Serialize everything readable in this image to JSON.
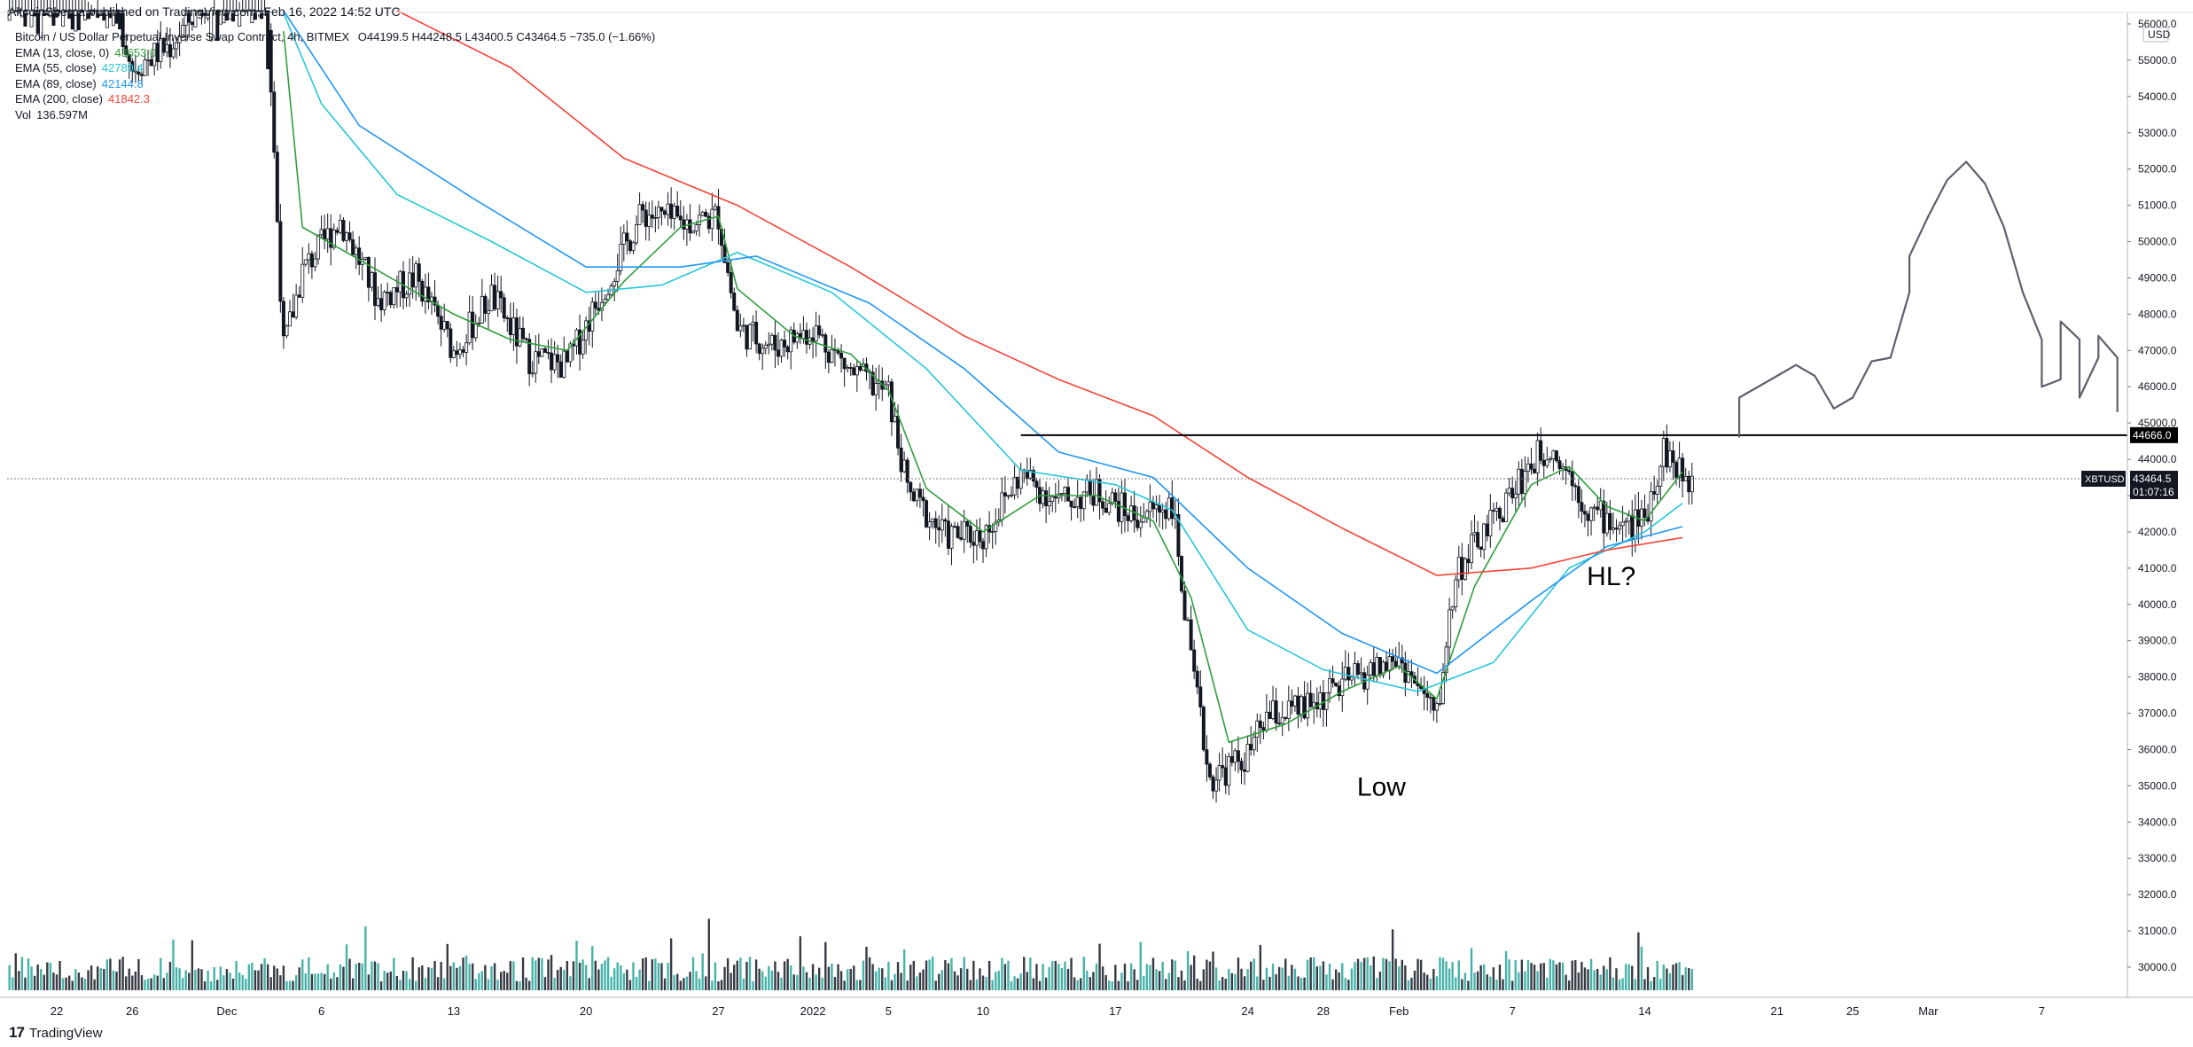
{
  "header": {
    "published_by": "AltcoinSherpa published on TradingView.com, Feb 16, 2022 14:52 UTC",
    "symbol_line": "Bitcoin / US Dollar Perpetual Inverse Swap Contract, 4h, BITMEX",
    "ohlc": "O44199.5  H44248.5  L43400.5  C43464.5  −735.0 (−1.66%)"
  },
  "indicators": [
    {
      "label": "EMA (13, close, 0)",
      "value": "43653.0",
      "color": "#2e9e3a"
    },
    {
      "label": "EMA (55, close)",
      "value": "42789.4",
      "color": "#26c6da"
    },
    {
      "label": "EMA (89, close)",
      "value": "42144.8",
      "color": "#2196f3"
    },
    {
      "label": "EMA (200, close)",
      "value": "41842.3",
      "color": "#f44336"
    },
    {
      "label": "Vol",
      "value": "136.597M",
      "color": "#131722"
    }
  ],
  "branding": {
    "logo_text": "TradingView"
  },
  "price_axis": {
    "currency": "USD"
  },
  "labels": {
    "resistance_price": "44666.0",
    "current_symbol": "XBTUSD",
    "current_price": "43464.5",
    "countdown": "01:07:16",
    "annotation_low": "Low",
    "annotation_hl": "HL?"
  },
  "colors": {
    "ema13": "#2e9e3a",
    "ema55": "#26c6da",
    "ema89": "#2196f3",
    "ema200": "#f44336",
    "candles": "#131722",
    "volume": "#26a69a"
  },
  "chart_data": {
    "type": "candlestick",
    "timeframe": "4h",
    "ylim": [
      29500,
      56200
    ],
    "y_ticks": [
      "30000.0",
      "31000.0",
      "32000.0",
      "33000.0",
      "34000.0",
      "35000.0",
      "36000.0",
      "37000.0",
      "38000.0",
      "39000.0",
      "40000.0",
      "41000.0",
      "42000.0",
      "43000.0",
      "44000.0",
      "45000.0",
      "46000.0",
      "47000.0",
      "48000.0",
      "49000.0",
      "50000.0",
      "51000.0",
      "52000.0",
      "53000.0",
      "54000.0",
      "55000.0",
      "56000.0"
    ],
    "x_ticks": [
      {
        "label": "22",
        "date": "2021-11-22"
      },
      {
        "label": "26",
        "date": "2021-11-26"
      },
      {
        "label": "Dec",
        "date": "2021-12-01"
      },
      {
        "label": "6",
        "date": "2021-12-06"
      },
      {
        "label": "13",
        "date": "2021-12-13"
      },
      {
        "label": "20",
        "date": "2021-12-20"
      },
      {
        "label": "27",
        "date": "2021-12-27"
      },
      {
        "label": "2022",
        "date": "2022-01-01"
      },
      {
        "label": "5",
        "date": "2022-01-05"
      },
      {
        "label": "10",
        "date": "2022-01-10"
      },
      {
        "label": "17",
        "date": "2022-01-17"
      },
      {
        "label": "24",
        "date": "2022-01-24"
      },
      {
        "label": "28",
        "date": "2022-01-28"
      },
      {
        "label": "Feb",
        "date": "2022-02-01"
      },
      {
        "label": "7",
        "date": "2022-02-07"
      },
      {
        "label": "14",
        "date": "2022-02-14"
      },
      {
        "label": "21",
        "date": "2022-02-21"
      },
      {
        "label": "25",
        "date": "2022-02-25"
      },
      {
        "label": "Mar",
        "date": "2022-03-01"
      },
      {
        "label": "7",
        "date": "2022-03-07"
      }
    ],
    "close_path": [
      {
        "date": "2021-11-19",
        "close": 58000
      },
      {
        "date": "2021-11-22",
        "close": 57400
      },
      {
        "date": "2021-11-25",
        "close": 56800
      },
      {
        "date": "2021-11-26",
        "close": 54800
      },
      {
        "date": "2021-11-28",
        "close": 55400
      },
      {
        "date": "2021-11-30",
        "close": 56800
      },
      {
        "date": "2021-12-03",
        "close": 57800
      },
      {
        "date": "2021-12-04",
        "close": 47000
      },
      {
        "date": "2021-12-05",
        "close": 49200
      },
      {
        "date": "2021-12-07",
        "close": 50600
      },
      {
        "date": "2021-12-09",
        "close": 48400
      },
      {
        "date": "2021-12-11",
        "close": 49000
      },
      {
        "date": "2021-12-13",
        "close": 47000
      },
      {
        "date": "2021-12-15",
        "close": 48500
      },
      {
        "date": "2021-12-17",
        "close": 46800
      },
      {
        "date": "2021-12-19",
        "close": 46600
      },
      {
        "date": "2021-12-21",
        "close": 48800
      },
      {
        "date": "2021-12-23",
        "close": 50800
      },
      {
        "date": "2021-12-25",
        "close": 50500
      },
      {
        "date": "2021-12-27",
        "close": 50700
      },
      {
        "date": "2021-12-28",
        "close": 47600
      },
      {
        "date": "2021-12-30",
        "close": 47100
      },
      {
        "date": "2022-01-01",
        "close": 47600
      },
      {
        "date": "2022-01-03",
        "close": 46400
      },
      {
        "date": "2022-01-05",
        "close": 45800
      },
      {
        "date": "2022-01-06",
        "close": 43100
      },
      {
        "date": "2022-01-08",
        "close": 41900
      },
      {
        "date": "2022-01-10",
        "close": 41900
      },
      {
        "date": "2022-01-12",
        "close": 43600
      },
      {
        "date": "2022-01-14",
        "close": 42800
      },
      {
        "date": "2022-01-16",
        "close": 43100
      },
      {
        "date": "2022-01-18",
        "close": 42400
      },
      {
        "date": "2022-01-20",
        "close": 42800
      },
      {
        "date": "2022-01-21",
        "close": 38400
      },
      {
        "date": "2022-01-22",
        "close": 35200
      },
      {
        "date": "2022-01-24",
        "close": 35800
      },
      {
        "date": "2022-01-25",
        "close": 36900
      },
      {
        "date": "2022-01-27",
        "close": 37100
      },
      {
        "date": "2022-01-29",
        "close": 37800
      },
      {
        "date": "2022-02-01",
        "close": 38500
      },
      {
        "date": "2022-02-03",
        "close": 36900
      },
      {
        "date": "2022-02-04",
        "close": 40900
      },
      {
        "date": "2022-02-06",
        "close": 42300
      },
      {
        "date": "2022-02-08",
        "close": 43900
      },
      {
        "date": "2022-02-09",
        "close": 44400
      },
      {
        "date": "2022-02-10",
        "close": 43600
      },
      {
        "date": "2022-02-11",
        "close": 42600
      },
      {
        "date": "2022-02-13",
        "close": 42100
      },
      {
        "date": "2022-02-14",
        "close": 42400
      },
      {
        "date": "2022-02-15",
        "close": 44300
      },
      {
        "date": "2022-02-16",
        "close": 43464.5
      }
    ],
    "series": [
      {
        "name": "EMA (13, close, 0)",
        "points": [
          {
            "date": "2021-12-04",
            "value": 55800
          },
          {
            "date": "2021-12-05",
            "value": 50400
          },
          {
            "date": "2021-12-07",
            "value": 49800
          },
          {
            "date": "2021-12-10",
            "value": 48900
          },
          {
            "date": "2021-12-13",
            "value": 48000
          },
          {
            "date": "2021-12-16",
            "value": 47300
          },
          {
            "date": "2021-12-19",
            "value": 47000
          },
          {
            "date": "2021-12-22",
            "value": 48900
          },
          {
            "date": "2021-12-25",
            "value": 50400
          },
          {
            "date": "2021-12-27",
            "value": 50700
          },
          {
            "date": "2021-12-28",
            "value": 48700
          },
          {
            "date": "2021-12-31",
            "value": 47400
          },
          {
            "date": "2022-01-03",
            "value": 46900
          },
          {
            "date": "2022-01-05",
            "value": 45900
          },
          {
            "date": "2022-01-07",
            "value": 43200
          },
          {
            "date": "2022-01-10",
            "value": 42000
          },
          {
            "date": "2022-01-13",
            "value": 43000
          },
          {
            "date": "2022-01-16",
            "value": 43000
          },
          {
            "date": "2022-01-19",
            "value": 42300
          },
          {
            "date": "2022-01-21",
            "value": 40200
          },
          {
            "date": "2022-01-23",
            "value": 36200
          },
          {
            "date": "2022-01-26",
            "value": 36700
          },
          {
            "date": "2022-01-29",
            "value": 37600
          },
          {
            "date": "2022-02-01",
            "value": 38300
          },
          {
            "date": "2022-02-03",
            "value": 37400
          },
          {
            "date": "2022-02-05",
            "value": 40500
          },
          {
            "date": "2022-02-08",
            "value": 43300
          },
          {
            "date": "2022-02-10",
            "value": 43800
          },
          {
            "date": "2022-02-12",
            "value": 42700
          },
          {
            "date": "2022-02-14",
            "value": 42300
          },
          {
            "date": "2022-02-16",
            "value": 43653
          }
        ]
      },
      {
        "name": "EMA (55, close)",
        "points": [
          {
            "date": "2021-12-04",
            "value": 56300
          },
          {
            "date": "2021-12-06",
            "value": 53800
          },
          {
            "date": "2021-12-10",
            "value": 51300
          },
          {
            "date": "2021-12-15",
            "value": 50000
          },
          {
            "date": "2021-12-20",
            "value": 48600
          },
          {
            "date": "2021-12-24",
            "value": 48800
          },
          {
            "date": "2021-12-28",
            "value": 49700
          },
          {
            "date": "2022-01-02",
            "value": 48600
          },
          {
            "date": "2022-01-07",
            "value": 46500
          },
          {
            "date": "2022-01-12",
            "value": 43700
          },
          {
            "date": "2022-01-17",
            "value": 43300
          },
          {
            "date": "2022-01-20",
            "value": 42600
          },
          {
            "date": "2022-01-24",
            "value": 39300
          },
          {
            "date": "2022-01-28",
            "value": 38200
          },
          {
            "date": "2022-02-02",
            "value": 37600
          },
          {
            "date": "2022-02-06",
            "value": 38400
          },
          {
            "date": "2022-02-10",
            "value": 41000
          },
          {
            "date": "2022-02-14",
            "value": 42000
          },
          {
            "date": "2022-02-16",
            "value": 42789.4
          }
        ]
      },
      {
        "name": "EMA (89, close)",
        "points": [
          {
            "date": "2021-12-04",
            "value": 57200
          },
          {
            "date": "2021-12-08",
            "value": 53200
          },
          {
            "date": "2021-12-14",
            "value": 51200
          },
          {
            "date": "2021-12-20",
            "value": 49300
          },
          {
            "date": "2021-12-25",
            "value": 49300
          },
          {
            "date": "2021-12-29",
            "value": 49600
          },
          {
            "date": "2022-01-04",
            "value": 48300
          },
          {
            "date": "2022-01-09",
            "value": 46500
          },
          {
            "date": "2022-01-14",
            "value": 44200
          },
          {
            "date": "2022-01-19",
            "value": 43500
          },
          {
            "date": "2022-01-24",
            "value": 41000
          },
          {
            "date": "2022-01-29",
            "value": 39200
          },
          {
            "date": "2022-02-03",
            "value": 38100
          },
          {
            "date": "2022-02-08",
            "value": 40100
          },
          {
            "date": "2022-02-12",
            "value": 41600
          },
          {
            "date": "2022-02-16",
            "value": 42144.8
          }
        ]
      },
      {
        "name": "EMA (200, close)",
        "points": [
          {
            "date": "2021-12-10",
            "value": 57300
          },
          {
            "date": "2021-12-16",
            "value": 54800
          },
          {
            "date": "2021-12-22",
            "value": 52300
          },
          {
            "date": "2021-12-28",
            "value": 51000
          },
          {
            "date": "2022-01-03",
            "value": 49300
          },
          {
            "date": "2022-01-09",
            "value": 47400
          },
          {
            "date": "2022-01-14",
            "value": 46200
          },
          {
            "date": "2022-01-19",
            "value": 45200
          },
          {
            "date": "2022-01-24",
            "value": 43500
          },
          {
            "date": "2022-01-29",
            "value": 42100
          },
          {
            "date": "2022-02-03",
            "value": 40800
          },
          {
            "date": "2022-02-08",
            "value": 41000
          },
          {
            "date": "2022-02-12",
            "value": 41500
          },
          {
            "date": "2022-02-16",
            "value": 41842.3
          }
        ]
      }
    ],
    "annotations": {
      "horizontal_line": {
        "value": 44666.0,
        "from_date": "2022-01-12",
        "to_date": "2022-03-11"
      },
      "projection": [
        {
          "date": "2022-02-19",
          "value": 44600
        },
        {
          "date": "2022-02-19",
          "value": 45700
        },
        {
          "date": "2022-02-21",
          "value": 46300
        },
        {
          "date": "2022-02-22",
          "value": 46600
        },
        {
          "date": "2022-02-23",
          "value": 46300
        },
        {
          "date": "2022-02-24",
          "value": 45400
        },
        {
          "date": "2022-02-25",
          "value": 45700
        },
        {
          "date": "2022-02-26",
          "value": 46700
        },
        {
          "date": "2022-02-27",
          "value": 46800
        },
        {
          "date": "2022-02-28",
          "value": 48600
        },
        {
          "date": "2022-02-28",
          "value": 49600
        },
        {
          "date": "2022-03-01",
          "value": 50700
        },
        {
          "date": "2022-03-02",
          "value": 51700
        },
        {
          "date": "2022-03-03",
          "value": 52200
        },
        {
          "date": "2022-03-04",
          "value": 51600
        },
        {
          "date": "2022-03-05",
          "value": 50400
        },
        {
          "date": "2022-03-06",
          "value": 48600
        },
        {
          "date": "2022-03-07",
          "value": 47300
        },
        {
          "date": "2022-03-07",
          "value": 46000
        },
        {
          "date": "2022-03-08",
          "value": 46200
        },
        {
          "date": "2022-03-08",
          "value": 47800
        },
        {
          "date": "2022-03-09",
          "value": 47300
        },
        {
          "date": "2022-03-09",
          "value": 45700
        },
        {
          "date": "2022-03-10",
          "value": 46800
        },
        {
          "date": "2022-03-10",
          "value": 47400
        },
        {
          "date": "2022-03-11",
          "value": 46800
        },
        {
          "date": "2022-03-11",
          "value": 45300
        }
      ],
      "text_labels": [
        {
          "text": "Low",
          "date": "2022-01-31",
          "value": 35000
        },
        {
          "text": "HL?",
          "date": "2022-02-13",
          "value": 40800
        }
      ]
    },
    "volume": {
      "ylim": [
        0,
        17
      ],
      "unit": "M",
      "last": "136.597M"
    },
    "grid": false,
    "legend_position": "top-left"
  }
}
